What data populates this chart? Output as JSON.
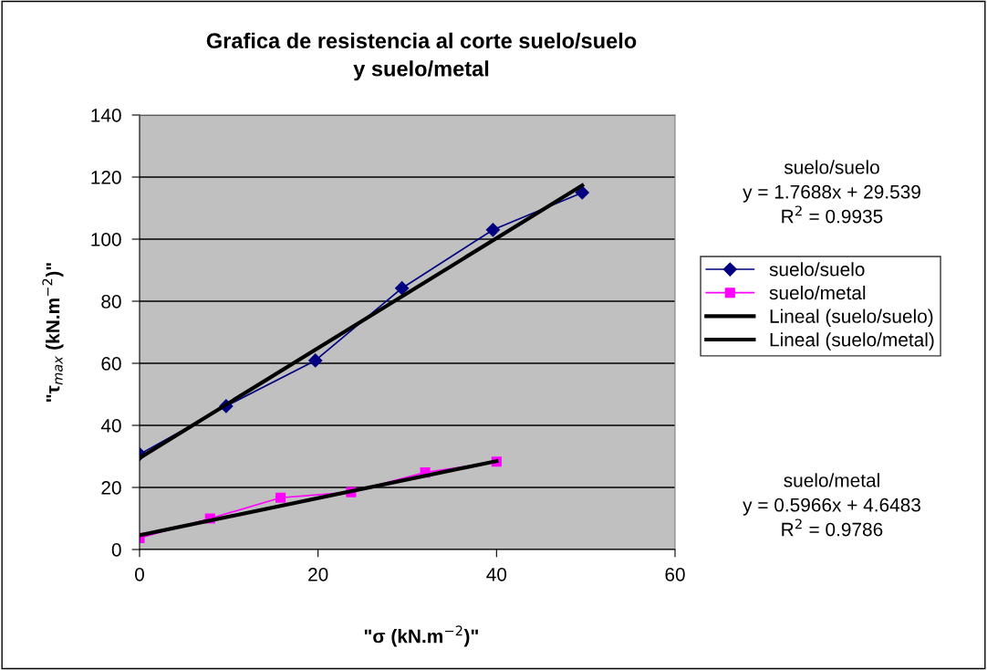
{
  "chart_data": {
    "type": "line",
    "title": "Grafica de resistencia al corte suelo/suelo\ny suelo/metal",
    "xlabel": "\"σ (kN.m$^{−2}$)\"",
    "ylabel": "\"τ$_{max}$ (kN.m$^{−2}$)\"",
    "xlim": [
      0,
      60
    ],
    "xticks": [
      0,
      20,
      40,
      60
    ],
    "ylim": [
      0,
      140
    ],
    "yticks": [
      0,
      20,
      40,
      60,
      80,
      100,
      120,
      140
    ],
    "grid": "y",
    "legend": "right",
    "series": [
      {
        "name": "suelo/suelo",
        "marker": "diamond",
        "color": "#000080",
        "x": [
          0,
          9.7,
          19.7,
          29.4,
          39.6,
          49.6
        ],
        "values": [
          30.7,
          46.2,
          60.9,
          84.2,
          103,
          115
        ]
      },
      {
        "name": "suelo/metal",
        "marker": "square",
        "color": "#ff00ff",
        "x": [
          0,
          7.9,
          15.8,
          23.7,
          32.0,
          40
        ],
        "values": [
          3.7,
          10,
          16.7,
          18.5,
          24.8,
          28.3
        ]
      },
      {
        "name": "Lineal (suelo/suelo)",
        "color": "#000000",
        "x": [
          0,
          49.6
        ],
        "values": [
          29.5,
          117.3
        ]
      },
      {
        "name": "Lineal (suelo/metal)",
        "color": "#000000",
        "x": [
          0,
          40
        ],
        "values": [
          4.6,
          28.5
        ]
      }
    ],
    "annotations": [
      "suelo/suelo\ny = 1.7688x + 29.539\nR$^{2}$ = 0.9935",
      "suelo/metal\ny = 0.5966x + 4.6483\nR$^{2}$ = 0.9786"
    ]
  }
}
